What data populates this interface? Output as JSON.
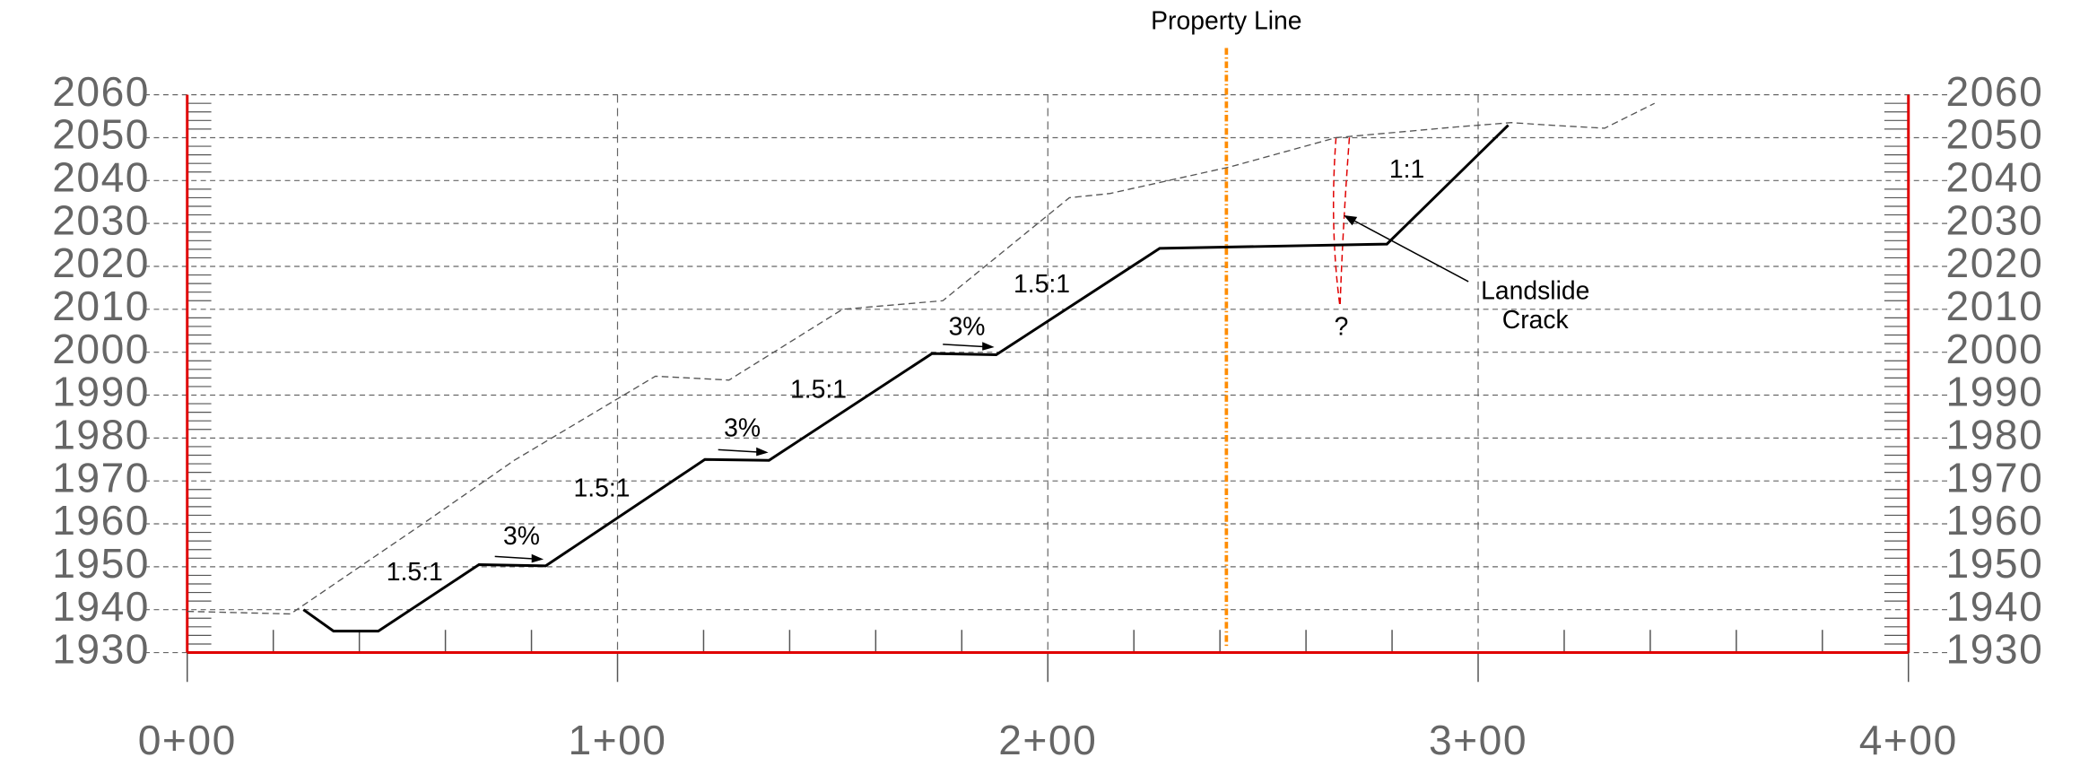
{
  "chart_data": {
    "type": "line",
    "xlim": [
      0,
      400
    ],
    "ylim": [
      1930,
      2060
    ],
    "xticks": [
      {
        "value": 0,
        "label": "0+00"
      },
      {
        "value": 100,
        "label": "1+00"
      },
      {
        "value": 200,
        "label": "2+00"
      },
      {
        "value": 300,
        "label": "3+00"
      },
      {
        "value": 400,
        "label": "4+00"
      }
    ],
    "xminorticks": [
      20,
      40,
      60,
      80,
      120,
      140,
      160,
      180,
      220,
      240,
      260,
      280,
      320,
      340,
      360,
      380
    ],
    "yticks": [
      1930,
      1940,
      1950,
      1960,
      1970,
      1980,
      1990,
      2000,
      2010,
      2020,
      2030,
      2040,
      2050,
      2060
    ],
    "yminorticks": [
      1932,
      1934,
      1936,
      1938,
      1942,
      1944,
      1946,
      1948,
      1952,
      1954,
      1956,
      1958,
      1962,
      1964,
      1966,
      1968,
      1972,
      1974,
      1976,
      1978,
      1982,
      1984,
      1986,
      1988,
      1992,
      1994,
      1996,
      1998,
      2002,
      2004,
      2006,
      2008,
      2012,
      2014,
      2016,
      2018,
      2022,
      2024,
      2026,
      2028,
      2032,
      2034,
      2036,
      2038,
      2042,
      2044,
      2046,
      2048,
      2052,
      2054,
      2056,
      2058
    ],
    "grid": true,
    "axis_color": "#e00000",
    "series": [
      {
        "color": "#000000",
        "style": "solid",
        "x": [
          27,
          34,
          44.4,
          67.8,
          83.3,
          120.3,
          135.2,
          173.1,
          188,
          226,
          278.8,
          307
        ],
        "values": [
          1940,
          1935,
          1935,
          1950.5,
          1950.2,
          1975,
          1974.8,
          1999.7,
          1999.4,
          2024.2,
          2025.2,
          2052.9
        ]
      },
      {
        "color": "#555555",
        "style": "dashed",
        "x": [
          0,
          24,
          55.9,
          76,
          108.8,
          125.9,
          152.3,
          175.6,
          205,
          214.5,
          242.4,
          267,
          295,
          307.7,
          316.9,
          329.4,
          341
        ],
        "values": [
          1939.6,
          1939,
          1960.8,
          1974.8,
          1994.4,
          1993.5,
          2010,
          2012,
          2036,
          2037,
          2043.2,
          2050,
          2052.5,
          2053.5,
          2052.9,
          2052.2,
          2058
        ]
      }
    ],
    "property_line": {
      "label": "Property Line",
      "x": 241.5,
      "color": "#ff8c00"
    },
    "crack_color": "#e00000",
    "annotations": [
      "1.5:1",
      "1.5:1",
      "1.5:1",
      "1.5:1",
      "3%",
      "3%",
      "3%",
      "1:1",
      "?"
    ],
    "landslide_label": [
      "Landslide",
      "Crack"
    ]
  }
}
